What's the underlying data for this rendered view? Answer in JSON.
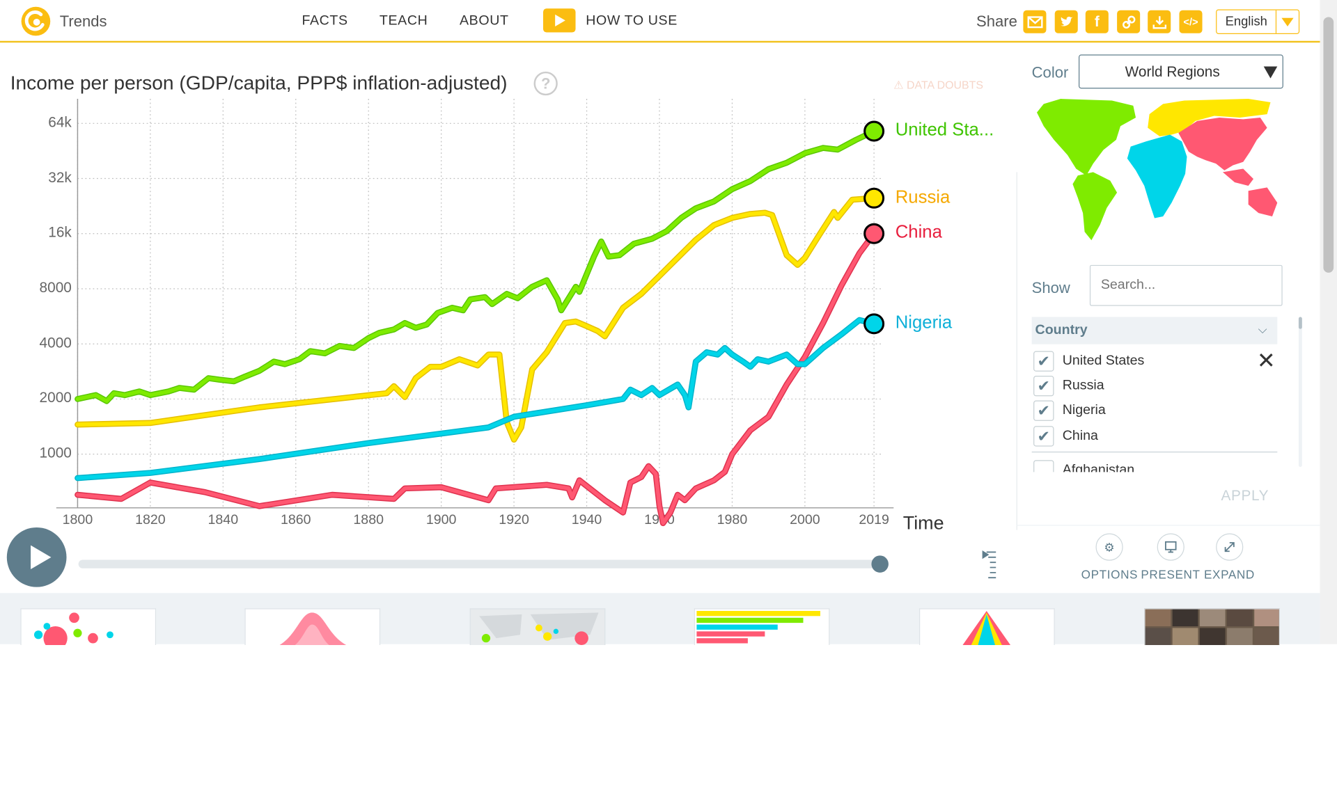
{
  "header": {
    "logo_text": "Trends",
    "nav": [
      "FACTS",
      "TEACH",
      "ABOUT"
    ],
    "how_to_use": "HOW TO USE",
    "share_label": "Share",
    "share_icons": [
      "mail-icon",
      "twitter-icon",
      "facebook-icon",
      "link-icon",
      "download-icon",
      "embed-icon"
    ],
    "language": "English"
  },
  "chart": {
    "title": "Income per person (GDP/capita, PPP$ inflation-adjusted)",
    "data_doubts": "DATA DOUBTS",
    "x_axis_label": "Time",
    "current_year": "2019"
  },
  "chart_data": {
    "type": "line",
    "title": "Income per person (GDP/capita, PPP$ inflation-adjusted)",
    "xlabel": "Time",
    "ylabel": "",
    "y_scale": "log",
    "xlim": [
      1800,
      2022
    ],
    "ylim": [
      400,
      90000
    ],
    "x_ticks": [
      1800,
      1820,
      1840,
      1860,
      1880,
      1900,
      1920,
      1940,
      1960,
      1980,
      2000,
      2019
    ],
    "y_ticks": [
      1000,
      2000,
      4000,
      8000,
      16000,
      32000,
      64000
    ],
    "y_tick_labels": [
      "1000",
      "2000",
      "4000",
      "8000",
      "16k",
      "32k",
      "64k"
    ],
    "grid": true,
    "series": [
      {
        "name": "United Sta...",
        "color": "#7feb00",
        "x": [
          1800,
          1805,
          1808,
          1810,
          1813,
          1817,
          1820,
          1825,
          1828,
          1832,
          1836,
          1839,
          1843,
          1846,
          1850,
          1854,
          1857,
          1861,
          1864,
          1868,
          1872,
          1876,
          1880,
          1883,
          1887,
          1890,
          1893,
          1896,
          1899,
          1903,
          1906,
          1908,
          1912,
          1914,
          1918,
          1921,
          1925,
          1929,
          1932,
          1933,
          1937,
          1938,
          1942,
          1944,
          1946,
          1949,
          1953,
          1958,
          1962,
          1966,
          1970,
          1975,
          1980,
          1985,
          1990,
          1995,
          2000,
          2005,
          2009,
          2014,
          2019
        ],
        "values": [
          2000,
          2100,
          1950,
          2150,
          2100,
          2200,
          2100,
          2200,
          2300,
          2250,
          2600,
          2550,
          2500,
          2650,
          2850,
          3200,
          3100,
          3300,
          3650,
          3550,
          3900,
          3800,
          4300,
          4600,
          4800,
          5200,
          4900,
          5100,
          5900,
          6300,
          6100,
          7000,
          7200,
          6600,
          7500,
          7100,
          8200,
          8900,
          7000,
          6100,
          8200,
          7700,
          12000,
          14500,
          12000,
          12200,
          14100,
          15000,
          16500,
          19500,
          22000,
          24000,
          28000,
          31000,
          36000,
          39000,
          44000,
          47000,
          46000,
          52000,
          58000
        ]
      },
      {
        "name": "Russia",
        "color": "#ffe700",
        "x": [
          1800,
          1820,
          1850,
          1885,
          1887,
          1890,
          1893,
          1897,
          1900,
          1905,
          1910,
          1913,
          1916,
          1918,
          1920,
          1922,
          1925,
          1929,
          1934,
          1937,
          1940,
          1943,
          1945,
          1950,
          1955,
          1960,
          1965,
          1970,
          1975,
          1980,
          1985,
          1989,
          1991,
          1995,
          1998,
          2000,
          2004,
          2008,
          2009,
          2013,
          2019
        ],
        "values": [
          1450,
          1480,
          1800,
          2150,
          2350,
          2050,
          2600,
          3000,
          3000,
          3300,
          3050,
          3500,
          3500,
          1500,
          1200,
          1400,
          2900,
          3600,
          5200,
          5300,
          5000,
          4700,
          4400,
          6300,
          7500,
          9400,
          11800,
          14800,
          17800,
          19500,
          20500,
          20800,
          20200,
          12200,
          10800,
          11800,
          15800,
          21000,
          19500,
          24500,
          25000
        ]
      },
      {
        "name": "China",
        "color": "#ff5872",
        "x": [
          1800,
          1812,
          1820,
          1835,
          1850,
          1870,
          1887,
          1890,
          1900,
          1913,
          1915,
          1929,
          1935,
          1936,
          1938,
          1945,
          1950,
          1952,
          1955,
          1957,
          1959,
          1960,
          1961,
          1963,
          1965,
          1967,
          1970,
          1975,
          1978,
          1980,
          1985,
          1990,
          1995,
          2000,
          2005,
          2010,
          2015,
          2019
        ],
        "values": [
          600,
          570,
          700,
          620,
          520,
          600,
          570,
          650,
          660,
          560,
          650,
          680,
          650,
          580,
          720,
          560,
          480,
          700,
          750,
          860,
          780,
          520,
          420,
          480,
          600,
          560,
          650,
          720,
          800,
          1000,
          1350,
          1600,
          2400,
          3400,
          5200,
          8300,
          12500,
          16000
        ]
      },
      {
        "name": "Nigeria",
        "color": "#00d5e9",
        "x": [
          1800,
          1820,
          1850,
          1880,
          1913,
          1920,
          1940,
          1950,
          1952,
          1955,
          1958,
          1960,
          1965,
          1967,
          1968,
          1970,
          1973,
          1976,
          1978,
          1980,
          1983,
          1985,
          1987,
          1990,
          1995,
          1998,
          2000,
          2005,
          2010,
          2015,
          2019
        ],
        "values": [
          740,
          790,
          940,
          1150,
          1400,
          1600,
          1850,
          2000,
          2250,
          2100,
          2300,
          2100,
          2400,
          2100,
          1800,
          3200,
          3600,
          3500,
          3800,
          3500,
          3200,
          3000,
          3300,
          3200,
          3500,
          3100,
          3100,
          3800,
          4500,
          5400,
          5150
        ]
      }
    ]
  },
  "timeslider": {
    "start": 1800,
    "end": 2019,
    "current": 2019,
    "progress": 1.0
  },
  "side": {
    "color_label": "Color",
    "color_value": "World Regions",
    "region_colors": [
      "#7feb00",
      "#ffe700",
      "#00d5e9",
      "#ff5872"
    ],
    "show_label": "Show",
    "search_placeholder": "Search...",
    "country_header": "Country",
    "countries": [
      {
        "name": "United States",
        "checked": true
      },
      {
        "name": "Russia",
        "checked": true
      },
      {
        "name": "Nigeria",
        "checked": true
      },
      {
        "name": "China",
        "checked": true
      },
      {
        "name": "Afghanistan",
        "checked": false
      }
    ],
    "apply": "APPLY",
    "buttons": [
      {
        "label": "OPTIONS",
        "icon": "gear-icon"
      },
      {
        "label": "PRESENT",
        "icon": "present-icon"
      },
      {
        "label": "EXPAND",
        "icon": "expand-icon"
      }
    ]
  }
}
